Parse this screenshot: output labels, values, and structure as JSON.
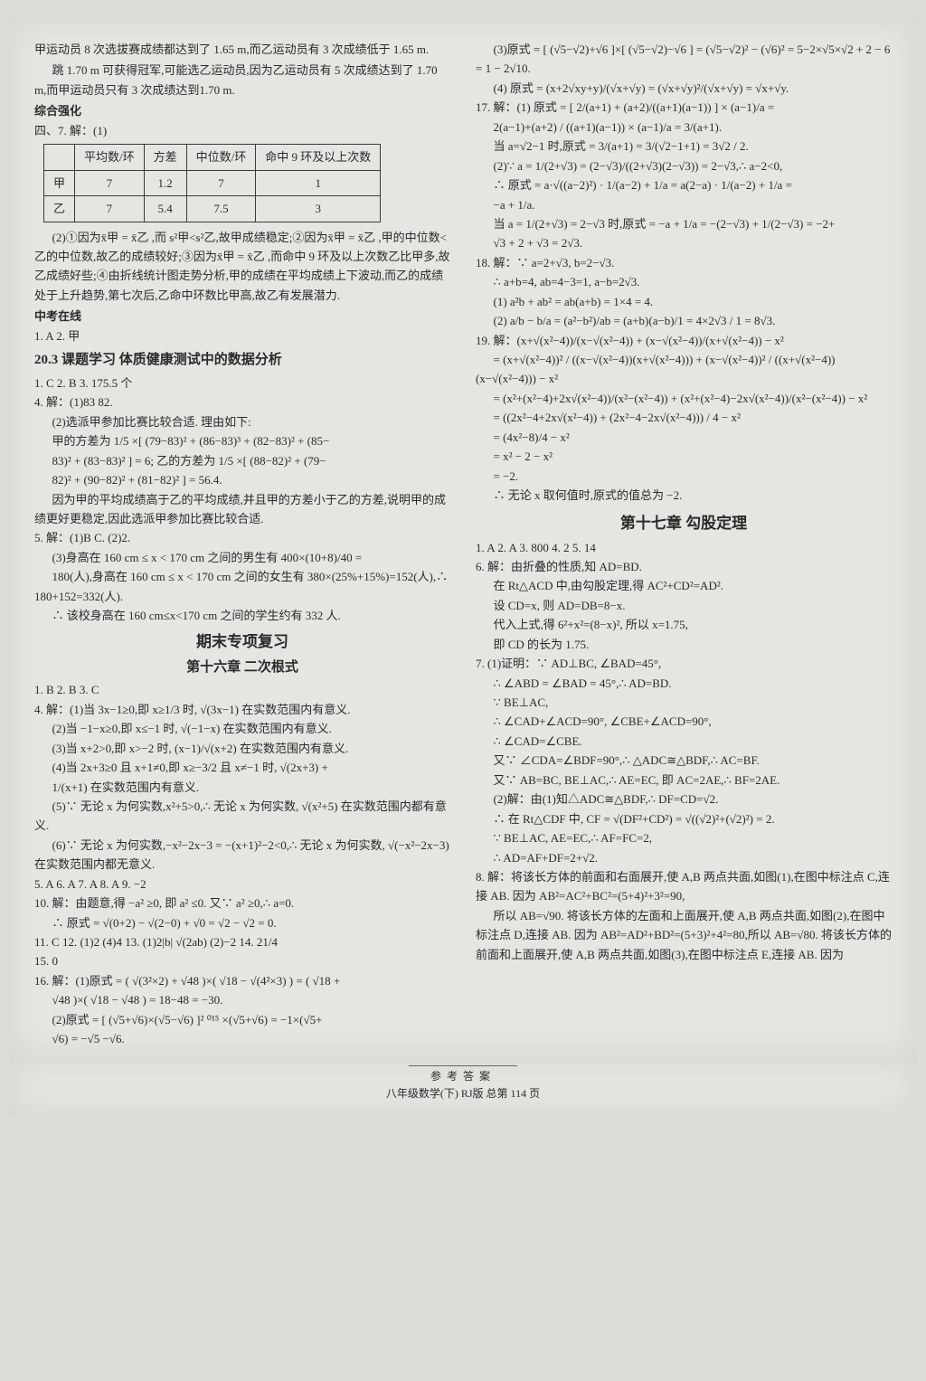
{
  "left": {
    "p1": "甲运动员 8 次选拔赛成绩都达到了 1.65 m,而乙运动员有 3 次成绩低于 1.65 m.",
    "p2": "跳 1.70 m 可获得冠军,可能选乙运动员,因为乙运动员有 5 次成绩达到了 1.70 m,而甲运动员只有 3 次成绩达到1.70 m.",
    "zhqh": "综合强化",
    "q47": "四、7. 解：(1)",
    "table": {
      "headers": [
        "",
        "平均数/环",
        "方差",
        "中位数/环",
        "命中 9 环及以上次数"
      ],
      "rows": [
        [
          "甲",
          "7",
          "1.2",
          "7",
          "1"
        ],
        [
          "乙",
          "7",
          "5.4",
          "7.5",
          "3"
        ]
      ]
    },
    "p3": "(2)①因为x̄甲 = x̄乙 ,而 s²甲<s²乙,故甲成绩稳定;②因为x̄甲 = x̄乙 ,甲的中位数<乙的中位数,故乙的成绩较好;③因为x̄甲 = x̄乙 ,而命中 9 环及以上次数乙比甲多,故乙成绩好些;④由折线统计图走势分析,甲的成绩在平均成绩上下波动,而乙的成绩处于上升趋势,第七次后,乙命中环数比甲高,故乙有发展潜力.",
    "zkzx": "中考在线",
    "zkzx_a": "1. A   2. 甲",
    "h203": "20.3  课题学习  体质健康测试中的数据分析",
    "q203_1": "1. C   2. B   3. 175.5 个",
    "q4a": "4. 解：(1)83   82.",
    "q4b": "(2)选派甲参加比赛比较合适. 理由如下:",
    "q4c": "甲的方差为 1/5 ×[ (79−83)² + (86−83)³ + (82−83)² + (85−",
    "q4d": "83)² + (83−83)² ] = 6; 乙的方差为 1/5 ×[ (88−82)² + (79−",
    "q4e": "82)² + (90−82)² + (81−82)² ] = 56.4.",
    "q4f": "因为甲的平均成绩高于乙的平均成绩,并且甲的方差小于乙的方差,说明甲的成绩更好更稳定,因此选派甲参加比赛比较合适.",
    "q5a": "5. 解：(1)B   C.   (2)2.",
    "q5b": "(3)身高在 160 cm ≤ x < 170 cm 之间的男生有 400×(10+8)/40 =",
    "q5c": "180(人),身高在 160 cm ≤ x < 170 cm 之间的女生有 380×(25%+15%)=152(人),∴ 180+152=332(人).",
    "q5d": "∴ 该校身高在 160 cm≤x<170 cm 之间的学生约有 332 人.",
    "qmzx": "期末专项复习",
    "ch16": "第十六章  二次根式",
    "ch16_1": "1. B   2. B   3. C",
    "ch16_4a": "4. 解：(1)当 3x−1≥0,即 x≥1/3 时, √(3x−1) 在实数范围内有意义.",
    "ch16_4b": "(2)当 −1−x≥0,即 x≤−1 时, √(−1−x) 在实数范围内有意义.",
    "ch16_4c": "(3)当 x+2>0,即 x>−2 时, (x−1)/√(x+2) 在实数范围内有意义.",
    "ch16_4d": "(4)当 2x+3≥0 且 x+1≠0,即 x≥−3/2 且 x≠−1 时, √(2x+3) +",
    "ch16_4e": "1/(x+1) 在实数范围内有意义.",
    "ch16_4f": "(5)∵ 无论 x 为何实数,x²+5>0,∴ 无论 x 为何实数, √(x²+5) 在实数范围内都有意义.",
    "ch16_4g": "(6)∵ 无论 x 为何实数,−x²−2x−3 = −(x+1)²−2<0,∴ 无论 x 为何实数, √(−x²−2x−3) 在实数范围内都无意义.",
    "ch16_5": "5. A   6. A   7. A   8. A   9. −2",
    "ch16_10a": "10. 解：由题意,得 −a² ≥0, 即 a² ≤0. 又∵ a² ≥0,∴ a=0.",
    "ch16_10b": "∴ 原式 = √(0+2) − √(2−0) + √0 = √2 − √2 = 0.",
    "ch16_11": "11. C   12. (1)2   (4)4   13. (1)2|b| √(2ab)   (2)−2   14. 21/4",
    "ch16_15": "15. 0",
    "ch16_16a": "16. 解：(1)原式 = ( √(3²×2) + √48 )×( √18 − √(4²×3) ) = ( √18 +",
    "ch16_16b": "√48 )×( √18 − √48 ) = 18−48 = −30.",
    "ch16_16c": "(2)原式 = [ (√5+√6)×(√5−√6) ]² ⁰¹⁵ ×(√5+√6) = −1×(√5+",
    "ch16_16d": "√6) = −√5 −√6."
  },
  "right": {
    "r3": "(3)原式 = [ (√5−√2)+√6 ]×[ (√5−√2)−√6 ] = (√5−√2)² − (√6)² = 5−2×√5×√2 + 2 − 6 = 1 − 2√10.",
    "r4": "(4) 原式 = (x+2√xy+y)/(√x+√y) = (√x+√y)²/(√x+√y) = √x+√y.",
    "r17a": "17. 解：(1) 原式 = [ 2/(a+1) + (a+2)/((a+1)(a−1)) ] × (a−1)/a =",
    "r17b": "2(a−1)+(a+2) / ((a+1)(a−1)) × (a−1)/a = 3/(a+1).",
    "r17c": "当 a=√2−1 时,原式 = 3/(a+1) = 3/(√2−1+1) = 3√2 / 2.",
    "r17d": "(2)∵ a = 1/(2+√3) = (2−√3)/((2+√3)(2−√3)) = 2−√3,∴ a−2<0,",
    "r17e": "∴ 原式 = a·√((a−2)²) · 1/(a−2) + 1/a = a(2−a) · 1/(a−2) + 1/a =",
    "r17f": "−a + 1/a.",
    "r17g": "当 a = 1/(2+√3) = 2−√3 时,原式 = −a + 1/a = −(2−√3) + 1/(2−√3) = −2+",
    "r17h": "√3 + 2 + √3 = 2√3.",
    "r18a": "18. 解：∵ a=2+√3, b=2−√3.",
    "r18b": "∴ a+b=4, ab=4−3=1, a−b=2√3.",
    "r18c": "(1) a²b + ab² = ab(a+b) = 1×4 = 4.",
    "r18d": "(2) a/b − b/a = (a²−b²)/ab = (a+b)(a−b)/1 = 4×2√3 / 1 = 8√3.",
    "r19a": "19. 解：(x+√(x²−4))/(x−√(x²−4)) + (x−√(x²−4))/(x+√(x²−4)) − x²",
    "r19b": "= (x+√(x²−4))² / ((x−√(x²−4))(x+√(x²−4))) + (x−√(x²−4))² / ((x+√(x²−4))(x−√(x²−4))) − x²",
    "r19c": "= (x²+(x²−4)+2x√(x²−4))/(x²−(x²−4)) + (x²+(x²−4)−2x√(x²−4))/(x²−(x²−4)) − x²",
    "r19d": "= ((2x²−4+2x√(x²−4)) + (2x²−4−2x√(x²−4))) / 4 − x²",
    "r19e": "= (4x²−8)/4 − x²",
    "r19f": "= x² − 2 − x²",
    "r19g": "= −2.",
    "r19h": "∴ 无论 x 取何值时,原式的值总为 −2.",
    "ch17": "第十七章  勾股定理",
    "ch17_1": "1. A   2. A   3. 800   4. 2   5. 14",
    "ch17_6a": "6. 解：由折叠的性质,知 AD=BD.",
    "ch17_6b": "在 Rt△ACD 中,由勾股定理,得 AC²+CD²=AD².",
    "ch17_6c": "设 CD=x, 则 AD=DB=8−x.",
    "ch17_6d": "代入上式,得 6²+x²=(8−x)², 所以 x=1.75,",
    "ch17_6e": "即 CD 的长为 1.75.",
    "ch17_7a": "7. (1)证明：∵ AD⊥BC, ∠BAD=45°,",
    "ch17_7b": "∴ ∠ABD = ∠BAD = 45°,∴ AD=BD.",
    "ch17_7c": "∵ BE⊥AC,",
    "ch17_7d": "∴ ∠CAD+∠ACD=90°, ∠CBE+∠ACD=90°,",
    "ch17_7e": "∴ ∠CAD=∠CBE.",
    "ch17_7f": "又∵ ∠CDA=∠BDF=90°,∴ △ADC≅△BDF,∴ AC=BF.",
    "ch17_7g": "又∵ AB=BC, BE⊥AC,∴ AE=EC, 即 AC=2AE,∴ BF=2AE.",
    "ch17_7h": "(2)解：由(1)知△ADC≅△BDF,∴ DF=CD=√2.",
    "ch17_7i": "∴ 在 Rt△CDF 中, CF = √(DF²+CD²) = √((√2)²+(√2)²) = 2.",
    "ch17_7j": "∵ BE⊥AC, AE=EC,∴ AF=FC=2,",
    "ch17_7k": "∴ AD=AF+DF=2+√2.",
    "ch17_8a": "8. 解：将该长方体的前面和右面展开,使 A,B 两点共面,如图(1),在图中标注点 C,连接 AB. 因为 AB²=AC²+BC²=(5+4)²+3²=90,",
    "ch17_8b": "所以 AB=√90. 将该长方体的左面和上面展开,使 A,B 两点共面,如图(2),在图中标注点 D,连接 AB. 因为 AB²=AD²+BD²=(5+3)²+4²=80,所以 AB=√80. 将该长方体的前面和上面展开,使 A,B 两点共面,如图(3),在图中标注点 E,连接 AB. 因为"
  },
  "footer": {
    "f1": "参考答案",
    "f2": "八年级数学(下)  RJ版  总第 114 页"
  }
}
